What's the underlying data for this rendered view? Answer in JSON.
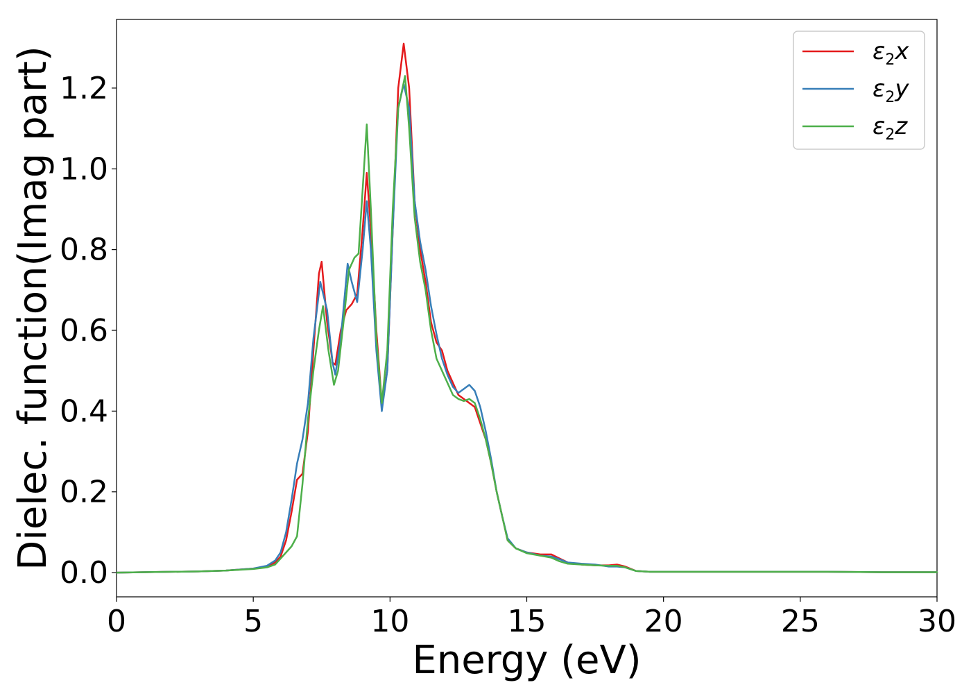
{
  "chart_data": {
    "type": "line",
    "xlabel": "Energy (eV)",
    "ylabel": "Dielec. function(Imag part)",
    "xlim": [
      0,
      30
    ],
    "ylim": [
      -0.06,
      1.37
    ],
    "xticks": [
      0,
      5,
      10,
      15,
      20,
      25,
      30
    ],
    "yticks": [
      0.0,
      0.2,
      0.4,
      0.6,
      0.8,
      1.0,
      1.2
    ],
    "xtick_labels": [
      "0",
      "5",
      "10",
      "15",
      "20",
      "25",
      "30"
    ],
    "ytick_labels": [
      "0.0",
      "0.2",
      "0.4",
      "0.6",
      "0.8",
      "1.0",
      "1.2"
    ],
    "grid": false,
    "legend_position": "top-right",
    "series": [
      {
        "name": "ε2x",
        "legend_base": "ε",
        "legend_sub": "2",
        "legend_var": "x",
        "color": "#e41a1c",
        "x": [
          0,
          2,
          3,
          4,
          5,
          5.5,
          5.8,
          6.0,
          6.2,
          6.4,
          6.6,
          6.8,
          7.0,
          7.2,
          7.4,
          7.5,
          7.7,
          7.9,
          8.0,
          8.2,
          8.4,
          8.6,
          8.8,
          9.0,
          9.15,
          9.3,
          9.5,
          9.7,
          9.9,
          10.1,
          10.3,
          10.5,
          10.7,
          10.9,
          11.1,
          11.3,
          11.5,
          11.7,
          11.9,
          12.1,
          12.3,
          12.5,
          12.7,
          12.9,
          13.1,
          13.3,
          13.5,
          13.7,
          13.9,
          14.1,
          14.3,
          14.6,
          15.0,
          15.5,
          15.9,
          16.2,
          16.5,
          17.0,
          17.5,
          18.0,
          18.3,
          18.6,
          19.0,
          19.5,
          20,
          22,
          24,
          26,
          28,
          30
        ],
        "y": [
          0.0,
          0.002,
          0.003,
          0.005,
          0.01,
          0.015,
          0.025,
          0.04,
          0.08,
          0.15,
          0.23,
          0.245,
          0.35,
          0.55,
          0.74,
          0.77,
          0.62,
          0.52,
          0.515,
          0.6,
          0.65,
          0.665,
          0.69,
          0.85,
          0.99,
          0.85,
          0.6,
          0.42,
          0.5,
          0.85,
          1.2,
          1.31,
          1.2,
          0.92,
          0.8,
          0.72,
          0.62,
          0.57,
          0.55,
          0.5,
          0.47,
          0.44,
          0.43,
          0.42,
          0.41,
          0.37,
          0.33,
          0.27,
          0.2,
          0.14,
          0.08,
          0.06,
          0.05,
          0.045,
          0.045,
          0.035,
          0.025,
          0.02,
          0.018,
          0.018,
          0.02,
          0.015,
          0.004,
          0.002,
          0.002,
          0.002,
          0.002,
          0.002,
          0.001,
          0.001
        ]
      },
      {
        "name": "ε2y",
        "legend_base": "ε",
        "legend_sub": "2",
        "legend_var": "y",
        "color": "#377eb8",
        "x": [
          0,
          2,
          3,
          4,
          5,
          5.5,
          5.8,
          6.0,
          6.2,
          6.4,
          6.6,
          6.8,
          7.0,
          7.2,
          7.45,
          7.7,
          7.9,
          8.0,
          8.2,
          8.45,
          8.6,
          8.8,
          9.0,
          9.15,
          9.3,
          9.5,
          9.7,
          9.9,
          10.1,
          10.3,
          10.5,
          10.7,
          10.9,
          11.1,
          11.3,
          11.5,
          11.7,
          11.9,
          12.1,
          12.3,
          12.5,
          12.7,
          12.9,
          13.1,
          13.3,
          13.5,
          13.7,
          13.9,
          14.1,
          14.3,
          14.6,
          15.0,
          15.5,
          15.9,
          16.2,
          16.5,
          17.0,
          17.5,
          18.0,
          18.3,
          18.6,
          19.0,
          19.5,
          20,
          22,
          24,
          26,
          28,
          30
        ],
        "y": [
          0.0,
          0.002,
          0.003,
          0.005,
          0.01,
          0.017,
          0.03,
          0.05,
          0.1,
          0.18,
          0.27,
          0.33,
          0.42,
          0.58,
          0.72,
          0.65,
          0.52,
          0.49,
          0.58,
          0.765,
          0.72,
          0.67,
          0.8,
          0.92,
          0.8,
          0.55,
          0.4,
          0.5,
          0.85,
          1.15,
          1.21,
          1.15,
          0.92,
          0.82,
          0.75,
          0.66,
          0.59,
          0.53,
          0.49,
          0.46,
          0.445,
          0.455,
          0.465,
          0.45,
          0.41,
          0.35,
          0.28,
          0.2,
          0.14,
          0.085,
          0.06,
          0.05,
          0.042,
          0.04,
          0.033,
          0.025,
          0.022,
          0.02,
          0.015,
          0.015,
          0.013,
          0.004,
          0.002,
          0.002,
          0.002,
          0.002,
          0.002,
          0.001,
          0.001
        ]
      },
      {
        "name": "ε2z",
        "legend_base": "ε",
        "legend_sub": "2",
        "legend_var": "z",
        "color": "#4daf4a",
        "x": [
          0,
          2,
          3,
          4,
          5,
          5.5,
          5.8,
          6.0,
          6.2,
          6.4,
          6.6,
          6.8,
          7.0,
          7.2,
          7.4,
          7.55,
          7.75,
          7.95,
          8.1,
          8.3,
          8.5,
          8.7,
          8.85,
          9.0,
          9.15,
          9.3,
          9.5,
          9.7,
          9.9,
          10.1,
          10.3,
          10.55,
          10.7,
          10.9,
          11.1,
          11.3,
          11.5,
          11.7,
          11.9,
          12.1,
          12.3,
          12.5,
          12.7,
          12.9,
          13.1,
          13.3,
          13.5,
          13.7,
          13.9,
          14.1,
          14.3,
          14.6,
          15.0,
          15.5,
          15.9,
          16.2,
          16.5,
          17.0,
          17.5,
          18.0,
          18.3,
          18.6,
          19.0,
          19.5,
          20,
          22,
          24,
          26,
          28,
          30
        ],
        "y": [
          0.0,
          0.002,
          0.003,
          0.005,
          0.009,
          0.013,
          0.02,
          0.035,
          0.05,
          0.065,
          0.09,
          0.22,
          0.38,
          0.5,
          0.6,
          0.66,
          0.55,
          0.465,
          0.5,
          0.62,
          0.75,
          0.78,
          0.79,
          0.95,
          1.11,
          0.9,
          0.58,
          0.42,
          0.55,
          0.9,
          1.15,
          1.23,
          1.1,
          0.88,
          0.77,
          0.7,
          0.6,
          0.53,
          0.5,
          0.47,
          0.44,
          0.43,
          0.425,
          0.43,
          0.42,
          0.38,
          0.33,
          0.27,
          0.2,
          0.14,
          0.08,
          0.06,
          0.048,
          0.042,
          0.037,
          0.028,
          0.022,
          0.02,
          0.018,
          0.017,
          0.017,
          0.013,
          0.004,
          0.002,
          0.002,
          0.002,
          0.002,
          0.002,
          0.001,
          0.001
        ]
      }
    ]
  }
}
